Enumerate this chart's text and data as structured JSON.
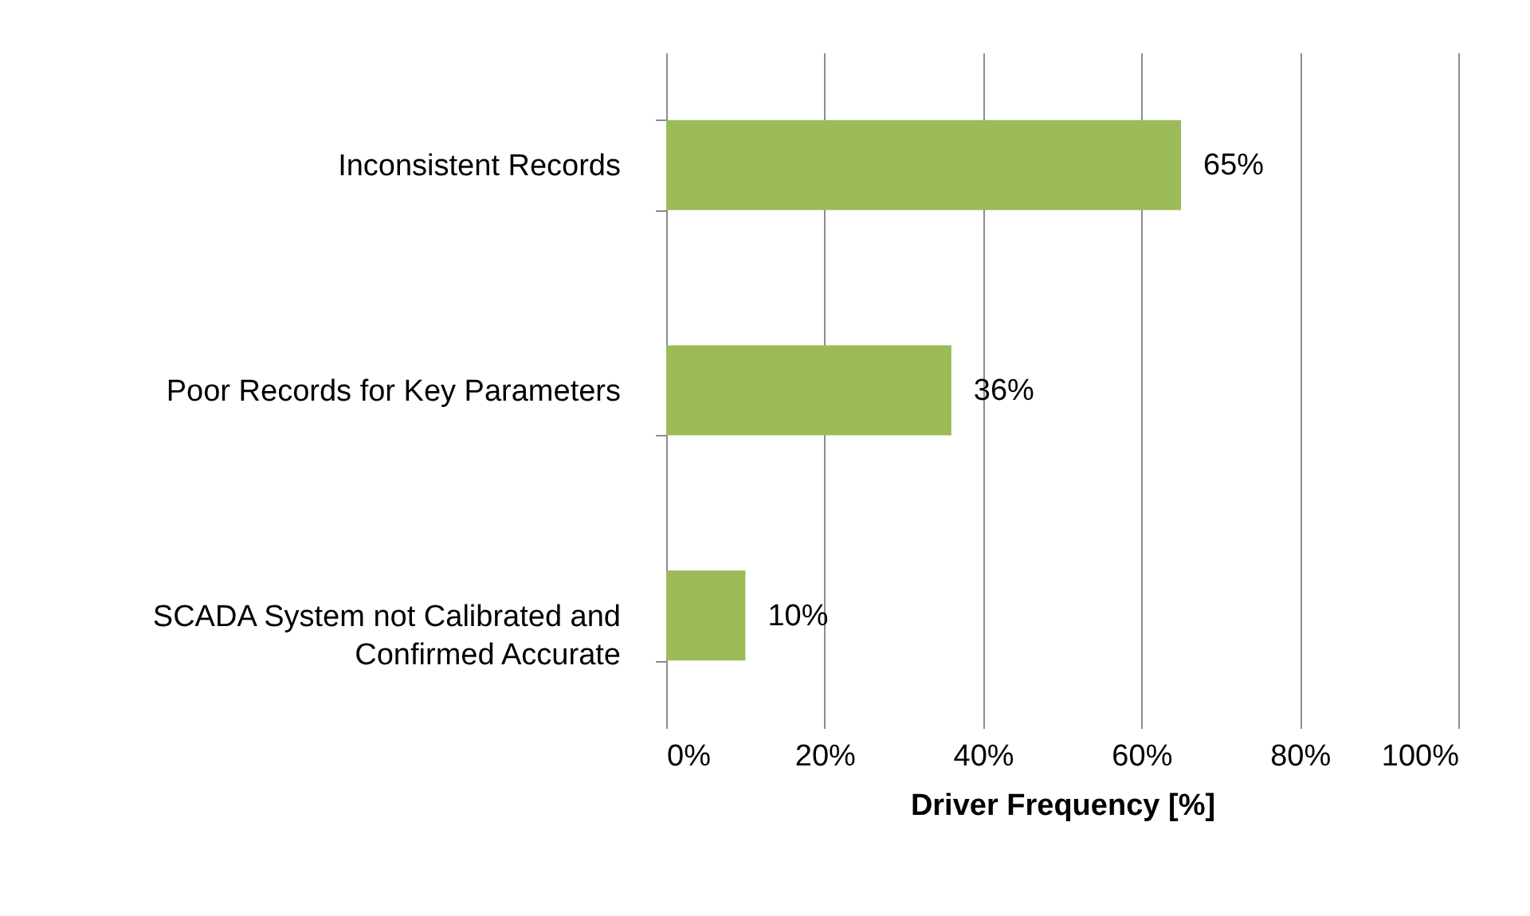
{
  "chart_data": {
    "type": "bar",
    "orientation": "horizontal",
    "xlabel": "Driver Frequency [%]",
    "categories": [
      "Inconsistent Records",
      "Poor Records for Key Parameters",
      "SCADA System not Calibrated and Confirmed Accurate"
    ],
    "values": [
      65,
      36,
      10
    ],
    "value_labels": [
      "65%",
      "36%",
      "10%"
    ],
    "color": "#9bbb59",
    "xlim": [
      0,
      100
    ],
    "xticks": [
      {
        "value": 0,
        "label": "0%"
      },
      {
        "value": 20,
        "label": "20%"
      },
      {
        "value": 40,
        "label": "40%"
      },
      {
        "value": 60,
        "label": "60%"
      },
      {
        "value": 80,
        "label": "80%"
      },
      {
        "value": 100,
        "label": "100%"
      }
    ],
    "grid": "x"
  }
}
